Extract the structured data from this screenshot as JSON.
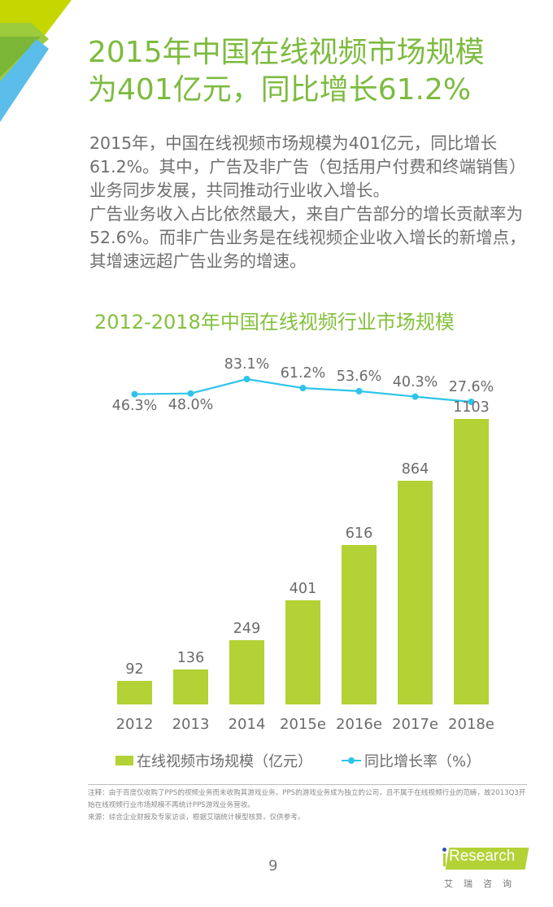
{
  "header": {
    "title_line1": "2015年中国在线视频市场规模",
    "title_line2": "为401亿元，同比增长61.2%"
  },
  "body": {
    "paragraph1": "2015年，中国在线视频市场规模为401亿元，同比增长61.2%。其中，广告及非广告（包括用户付费和终端销售）业务同步发展，共同推动行业收入增长。",
    "paragraph2": "广告业务收入占比依然最大，来自广告部分的增长贡献率为52.6%。而非广告业务是在线视频企业收入增长的新增点，其增速远超广告业务的增速。"
  },
  "chart_data": {
    "type": "bar",
    "title": "2012-2018年中国在线视频行业市场规模",
    "categories": [
      "2012",
      "2013",
      "2014",
      "2015e",
      "2016e",
      "2017e",
      "2018e"
    ],
    "series": [
      {
        "name": "在线视频市场规模（亿元）",
        "type": "bar",
        "color": "#b2d235",
        "values": [
          92,
          136,
          249,
          401,
          616,
          864,
          1103
        ]
      },
      {
        "name": "同比增长率（%）",
        "type": "line",
        "color": "#2ec4ea",
        "values": [
          46.3,
          48.0,
          83.1,
          61.2,
          53.6,
          40.3,
          27.6
        ]
      }
    ],
    "bar_labels": [
      "92",
      "136",
      "249",
      "401",
      "616",
      "864",
      "1103"
    ],
    "line_labels": [
      "46.3%",
      "48.0%",
      "83.1%",
      "61.2%",
      "53.6%",
      "40.3%",
      "27.6%"
    ],
    "xlabel": "",
    "ylabel": "",
    "grid": false,
    "legend_position": "bottom"
  },
  "legend": {
    "bar_label": "在线视频市场规模（亿元）",
    "line_label": "同比增长率（%）"
  },
  "notes": {
    "note": "注释：由于百度仅收购了PPS的视频业务而未收购其游戏业务，PPS的游戏业务成为独立的公司，且不属于在线视频行业的范畴，故2013Q3开始在线视频行业市场规模不再统计PPS游戏业务营收。",
    "source": "来源：综合企业财报及专家访谈，根据艾瑞统计模型核算，仅供参考。"
  },
  "footer": {
    "page_number": "9",
    "logo_text": "Research",
    "logo_sub": "艾瑞咨询"
  },
  "colors": {
    "title_green": "#7dbb3f",
    "bar_green": "#b2d235",
    "line_blue": "#2ec4ea",
    "corner_blue": "#5bbdea"
  }
}
